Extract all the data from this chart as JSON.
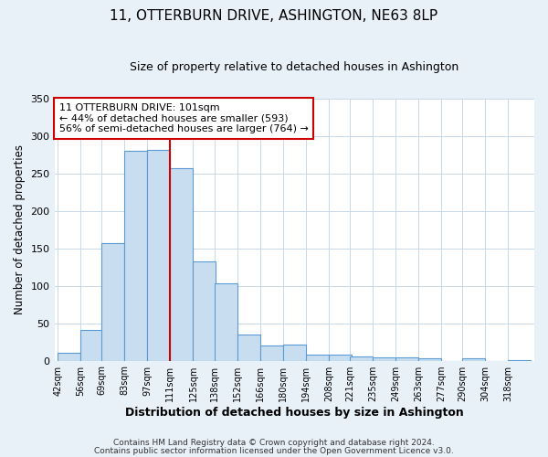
{
  "title": "11, OTTERBURN DRIVE, ASHINGTON, NE63 8LP",
  "subtitle": "Size of property relative to detached houses in Ashington",
  "xlabel": "Distribution of detached houses by size in Ashington",
  "ylabel": "Number of detached properties",
  "bin_labels": [
    "42sqm",
    "56sqm",
    "69sqm",
    "83sqm",
    "97sqm",
    "111sqm",
    "125sqm",
    "138sqm",
    "152sqm",
    "166sqm",
    "180sqm",
    "194sqm",
    "208sqm",
    "221sqm",
    "235sqm",
    "249sqm",
    "263sqm",
    "277sqm",
    "290sqm",
    "304sqm",
    "318sqm"
  ],
  "bar_heights": [
    10,
    41,
    157,
    280,
    282,
    257,
    133,
    103,
    35,
    20,
    21,
    8,
    8,
    6,
    4,
    4,
    3,
    0,
    3,
    0,
    1
  ],
  "bar_color": "#c9ddf0",
  "bar_edge_color": "#5b9bd5",
  "vline_color": "#cc0000",
  "annotation_text": "11 OTTERBURN DRIVE: 101sqm\n← 44% of detached houses are smaller (593)\n56% of semi-detached houses are larger (764) →",
  "annotation_box_color": "#ffffff",
  "annotation_box_edge_color": "#cc0000",
  "grid_color": "#c8d8e8",
  "plot_bg_color": "#ffffff",
  "fig_bg_color": "#e8f0f8",
  "ylim": [
    0,
    350
  ],
  "footnote1": "Contains HM Land Registry data © Crown copyright and database right 2024.",
  "footnote2": "Contains public sector information licensed under the Open Government Licence v3.0."
}
